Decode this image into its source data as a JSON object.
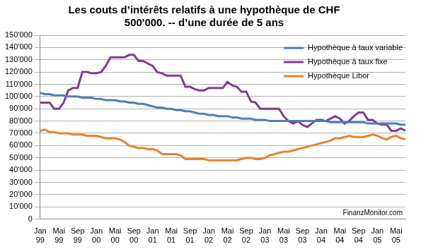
{
  "chart_data": {
    "type": "line",
    "title": [
      "Les couts d’intérêts relatifs à une hypothèque de CHF",
      "500'000. -- d’une durée de 5 ans"
    ],
    "annotation": "FinanzMonitor.com",
    "categories": [
      "Jan 99",
      null,
      null,
      null,
      "Mai 99",
      null,
      null,
      null,
      "Sep 99",
      null,
      null,
      null,
      "Jan 00",
      null,
      null,
      null,
      "Mai 00",
      null,
      null,
      null,
      "Sep 00",
      null,
      null,
      null,
      "Jan 01",
      null,
      null,
      null,
      "Mai 01",
      null,
      null,
      null,
      "Sep 01",
      null,
      null,
      null,
      "Jan 02",
      null,
      null,
      null,
      "Mai 02",
      null,
      null,
      null,
      "Sep 02",
      null,
      null,
      null,
      "Jan 03",
      null,
      null,
      null,
      "Mai 03",
      null,
      null,
      null,
      "Sep 03",
      null,
      null,
      null,
      "Jan 04",
      null,
      null,
      null,
      "Mai 04",
      null,
      null,
      null,
      "Sep 04",
      null,
      null,
      null,
      "Jan 05",
      null,
      null,
      null,
      "Mai 05",
      null,
      null
    ],
    "series": [
      {
        "name": "Hypothèque à taux variable",
        "color": "#4a7ebb",
        "values": [
          103000,
          102000,
          102000,
          101000,
          101000,
          101000,
          100000,
          100000,
          100000,
          99000,
          99000,
          99000,
          98000,
          98000,
          97000,
          97000,
          97000,
          96000,
          96000,
          95000,
          95000,
          94000,
          94000,
          93000,
          92000,
          91000,
          91000,
          90000,
          90000,
          89000,
          89000,
          88000,
          88000,
          87000,
          86000,
          86000,
          85000,
          85000,
          84000,
          84000,
          84000,
          83000,
          83000,
          82000,
          82000,
          82000,
          81000,
          81000,
          81000,
          80000,
          80000,
          80000,
          80000,
          80000,
          80000,
          80000,
          80000,
          80000,
          80000,
          80000,
          80000,
          80000,
          79000,
          79000,
          79000,
          79000,
          79000,
          79000,
          79000,
          79000,
          78000,
          78000,
          78000,
          78000,
          78000,
          78000,
          78000,
          77000,
          77000
        ]
      },
      {
        "name": "Hypothèque à taux fixe",
        "color": "#7d3c98",
        "values": [
          95000,
          95000,
          95000,
          90000,
          90000,
          95000,
          105000,
          107000,
          107000,
          120000,
          120000,
          119000,
          119000,
          120000,
          125000,
          132000,
          132000,
          132000,
          132000,
          134000,
          134000,
          129000,
          129000,
          127000,
          125000,
          120000,
          119000,
          117000,
          117000,
          117000,
          117000,
          108000,
          108000,
          106000,
          105000,
          105000,
          107000,
          107000,
          107000,
          107000,
          112000,
          109000,
          108000,
          104000,
          104000,
          96000,
          95000,
          90000,
          90000,
          90000,
          90000,
          90000,
          84000,
          80000,
          78000,
          80000,
          77000,
          75000,
          78000,
          81000,
          81000,
          80000,
          82000,
          84000,
          82000,
          78000,
          80000,
          84000,
          87000,
          87000,
          81000,
          81000,
          78000,
          77000,
          77000,
          72000,
          72000,
          74000,
          72000
        ]
      },
      {
        "name": "Hypothèque Libor",
        "color": "#e8822a",
        "values": [
          72000,
          73000,
          71000,
          71000,
          70000,
          70000,
          70000,
          69000,
          69000,
          69000,
          68000,
          68000,
          68000,
          67000,
          66000,
          66000,
          66000,
          65000,
          63000,
          60000,
          59000,
          58000,
          58000,
          57000,
          57000,
          56000,
          53000,
          53000,
          53000,
          53000,
          52000,
          49000,
          49000,
          49000,
          49000,
          49000,
          48000,
          48000,
          48000,
          48000,
          48000,
          48000,
          48000,
          49000,
          50000,
          50000,
          49000,
          49000,
          50000,
          52000,
          53000,
          54000,
          55000,
          55000,
          56000,
          57000,
          58000,
          59000,
          60000,
          61000,
          62000,
          63000,
          64000,
          66000,
          66000,
          67000,
          68000,
          67000,
          67000,
          67000,
          68000,
          69000,
          68000,
          66000,
          65000,
          67000,
          68000,
          66000,
          65000
        ]
      }
    ],
    "ylim": [
      0,
      150000
    ],
    "yticks": [
      0,
      {
        "value": 10000,
        "label": "10'000"
      },
      {
        "value": 20000,
        "label": "20'000"
      },
      {
        "value": 30000,
        "label": "30'000"
      },
      {
        "value": 40000,
        "label": "40'000"
      },
      {
        "value": 50000,
        "label": "50'000"
      },
      {
        "value": 60000,
        "label": "60'000"
      },
      {
        "value": 70000,
        "label": "70'000"
      },
      {
        "value": 80000,
        "label": "80'000"
      },
      {
        "value": 90000,
        "label": "90'000"
      },
      {
        "value": 100000,
        "label": "100'000"
      },
      {
        "value": 110000,
        "label": "110'000"
      },
      {
        "value": 120000,
        "label": "120'000"
      },
      {
        "value": 130000,
        "label": "130'000"
      },
      {
        "value": 140000,
        "label": "140'000"
      },
      {
        "value": 150000,
        "label": "150'000"
      }
    ],
    "grid": true,
    "legend": "top-right"
  }
}
